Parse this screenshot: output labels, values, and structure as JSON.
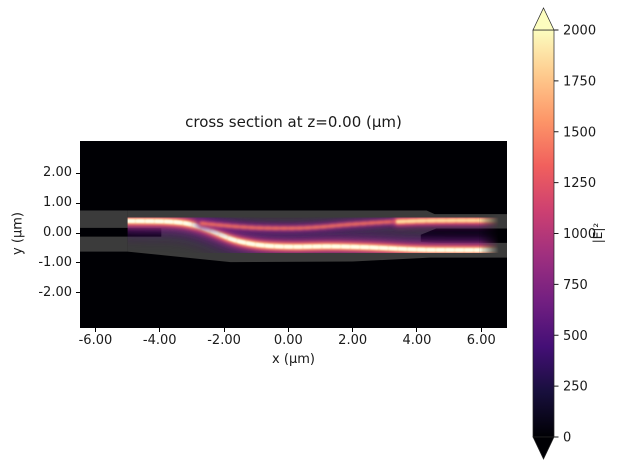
{
  "title": "cross section at z=0.00 (μm)",
  "axes": {
    "xlabel": "x (μm)",
    "ylabel": "y (μm)"
  },
  "colorbar": {
    "label": "|E|²",
    "ticks": [
      0,
      250,
      500,
      750,
      1000,
      1250,
      1500,
      1750,
      2000
    ],
    "tick_labels": [
      "0",
      "250",
      "500",
      "750",
      "1000",
      "1250",
      "1500",
      "1750",
      "2000"
    ],
    "extend": "both",
    "colormap": "magma",
    "under_color": "#000004",
    "over_color": "#fcfdbf",
    "gradient_stops": [
      "#000004",
      "#180f3d",
      "#440f76",
      "#721f81",
      "#9e2f7f",
      "#cd4071",
      "#f1605d",
      "#fd9668",
      "#feca8d",
      "#fcfdbf"
    ]
  },
  "chart_data": {
    "type": "heatmap",
    "title": "cross section at z=0.00 (μm)",
    "xlabel": "x (μm)",
    "ylabel": "y (μm)",
    "xlim": [
      -6.48,
      6.8
    ],
    "ylim": [
      -3.17,
      3.07
    ],
    "x_ticks": [
      -6,
      -4,
      -2,
      0,
      2,
      4,
      6
    ],
    "x_tick_labels": [
      "-6.00",
      "-4.00",
      "-2.00",
      "0.00",
      "2.00",
      "4.00",
      "6.00"
    ],
    "y_ticks": [
      2,
      1,
      0,
      -1,
      -2
    ],
    "y_tick_labels": [
      "2.00",
      "1.00",
      "0.00",
      "-1.00",
      "-2.00"
    ],
    "vmin": 0,
    "vmax": 2000,
    "colormap": "magma",
    "background_color": "#000004",
    "quantity": "|E|²",
    "description": "Simulated |E|² field intensity at the z=0 cross-section of a waveguide coupler/splitter. Light is launched into the upper input waveguide at x=-5 μm, crosses diagonally through the coupling slab to the lower side around x=-2 to 0 μm, propagates to the right with standing-wave interference ripples, and near x=4 μm the slab splits into two parallel output waveguides that both carry bright intensity until the field is absorbed near the right boundary (x≈6.3 μm). Gray translucent polygons show the dielectric structure over the black background.",
    "structure": {
      "color": "#3b3b3b",
      "polygons": [
        {
          "name": "input-top-waveguide",
          "pts": [
            [
              -6.48,
              0.75
            ],
            [
              -5.0,
              0.75
            ],
            [
              -5.0,
              0.17
            ],
            [
              -6.48,
              0.17
            ]
          ]
        },
        {
          "name": "input-bottom-waveguide",
          "pts": [
            [
              -6.48,
              -0.12
            ],
            [
              -5.0,
              -0.12
            ],
            [
              -5.0,
              -0.62
            ],
            [
              -6.48,
              -0.62
            ]
          ]
        },
        {
          "name": "coupler-slab-and-output-waveguides",
          "pts": [
            [
              -5.0,
              0.75
            ],
            [
              4.3,
              0.75
            ],
            [
              4.55,
              0.63
            ],
            [
              6.8,
              0.63
            ],
            [
              6.8,
              0.15
            ],
            [
              4.6,
              0.15
            ],
            [
              4.12,
              -0.06
            ],
            [
              4.12,
              -0.3
            ],
            [
              4.6,
              -0.33
            ],
            [
              6.8,
              -0.33
            ],
            [
              6.8,
              -0.82
            ],
            [
              4.4,
              -0.82
            ],
            [
              2.0,
              -0.95
            ],
            [
              -1.8,
              -0.97
            ],
            [
              -5.0,
              -0.62
            ],
            [
              -5.0,
              -0.12
            ],
            [
              -3.95,
              -0.12
            ],
            [
              -3.95,
              0.17
            ],
            [
              -5.0,
              0.17
            ]
          ]
        }
      ]
    },
    "field": {
      "source_x": -5.0,
      "fade_start_x": 5.95,
      "fade_end_x": 6.55,
      "paths": [
        {
          "name": "main-beam-input-to-bottom-output",
          "pts": [
            [
              -5.0,
              0.4
            ],
            [
              -3.9,
              0.4
            ],
            [
              -3.1,
              0.33
            ],
            [
              -2.35,
              0.06
            ],
            [
              -1.7,
              -0.25
            ],
            [
              -0.9,
              -0.42
            ],
            [
              0.1,
              -0.47
            ],
            [
              1.1,
              -0.44
            ],
            [
              2.1,
              -0.46
            ],
            [
              3.0,
              -0.5
            ],
            [
              3.8,
              -0.55
            ],
            [
              4.6,
              -0.57
            ],
            [
              6.6,
              -0.57
            ]
          ],
          "layers": [
            {
              "color": "#50127b",
              "width": 30,
              "blur": 7,
              "opacity": 0.55
            },
            {
              "color": "#8c2981",
              "width": 16,
              "blur": 4,
              "opacity": 0.85
            },
            {
              "color": "#de4968",
              "width": 10,
              "blur": 2.5,
              "opacity": 0.95
            },
            {
              "color": "#fe9f6d",
              "width": 6.5,
              "blur": 1.5,
              "opacity": 1
            },
            {
              "color": "#fff3c8",
              "width": 4,
              "blur": 1,
              "opacity": 1
            },
            {
              "color": "#ffffec",
              "width": 3,
              "blur": 0.8,
              "opacity": 0.9,
              "dash": "6 3.5"
            }
          ]
        },
        {
          "name": "secondary-upper-branch",
          "pts": [
            [
              -2.7,
              0.32
            ],
            [
              -1.6,
              0.2
            ],
            [
              -0.4,
              0.15
            ],
            [
              0.7,
              0.17
            ],
            [
              1.8,
              0.28
            ],
            [
              2.8,
              0.35
            ],
            [
              3.6,
              0.4
            ],
            [
              4.4,
              0.42
            ],
            [
              6.6,
              0.42
            ]
          ],
          "layers": [
            {
              "color": "#57157e",
              "width": 13,
              "blur": 4,
              "opacity": 0.6
            },
            {
              "color": "#a3307e",
              "width": 7,
              "blur": 2,
              "opacity": 0.85
            },
            {
              "color": "#f8765c",
              "width": 3.5,
              "blur": 1.2,
              "opacity": 0.85,
              "dash": "5 3"
            }
          ]
        },
        {
          "name": "top-output-beam",
          "pts": [
            [
              3.4,
              0.38
            ],
            [
              4.1,
              0.41
            ],
            [
              4.8,
              0.42
            ],
            [
              6.6,
              0.42
            ]
          ],
          "layers": [
            {
              "color": "#b5367a",
              "width": 10,
              "blur": 3,
              "opacity": 0.85
            },
            {
              "color": "#f8765c",
              "width": 6,
              "blur": 1.5,
              "opacity": 1
            },
            {
              "color": "#fedea0",
              "width": 3.5,
              "blur": 1,
              "opacity": 1,
              "dash": "7 3"
            }
          ]
        }
      ]
    }
  }
}
